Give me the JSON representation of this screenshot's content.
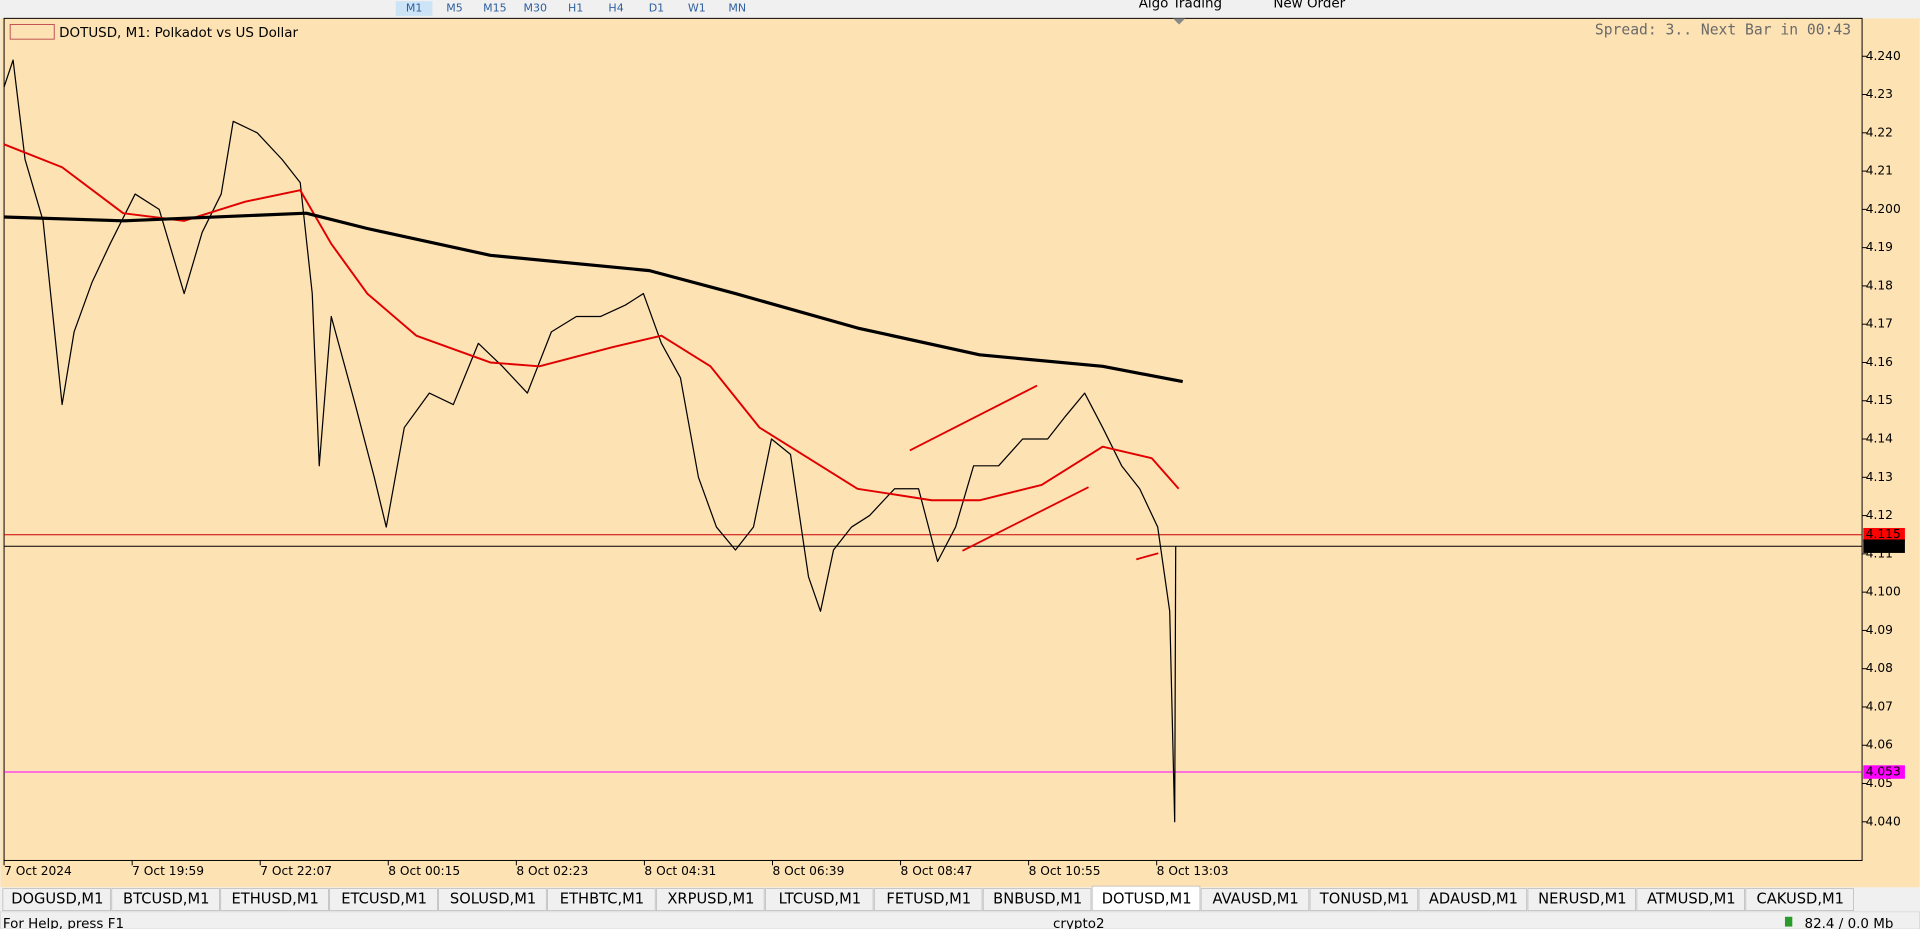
{
  "toolbar": {
    "timeframes": [
      "M1",
      "M5",
      "M15",
      "M30",
      "H1",
      "H4",
      "D1",
      "W1",
      "MN"
    ],
    "buttons": [
      "Algo Trading",
      "New Order"
    ]
  },
  "chart_data": {
    "type": "line",
    "title": "DOTUSD, M1:  Polkadot vs US Dollar",
    "info": "Spread: 3.. Next Bar in 00:43",
    "xlim": [
      0,
      1857
    ],
    "ylim": [
      4.0299,
      4.2499
    ],
    "xticks": [
      {
        "value": 0,
        "label": "7 Oct 2024"
      },
      {
        "value": 128,
        "label": "7 Oct 19:59"
      },
      {
        "value": 256,
        "label": "7 Oct 22:07"
      },
      {
        "value": 384,
        "label": "8 Oct 00:15"
      },
      {
        "value": 512,
        "label": "8 Oct 02:23"
      },
      {
        "value": 640,
        "label": "8 Oct 04:31"
      },
      {
        "value": 768,
        "label": "8 Oct 06:39"
      },
      {
        "value": 896,
        "label": "8 Oct 08:47"
      },
      {
        "value": 1024,
        "label": "8 Oct 10:55"
      },
      {
        "value": 1152,
        "label": "8 Oct 13:03"
      }
    ],
    "yticks": [
      {
        "value": 4.04,
        "label": "4.040"
      },
      4.05,
      4.06,
      4.07,
      4.08,
      4.09,
      {
        "value": 4.1,
        "label": "4.100"
      },
      4.11,
      4.12,
      4.13,
      4.14,
      4.15,
      4.16,
      4.17,
      4.18,
      4.19,
      {
        "value": 4.2,
        "label": "4.200"
      },
      4.21,
      4.22,
      4.23,
      {
        "value": 4.24,
        "label": "4.240"
      }
    ],
    "series": [
      {
        "color": "#000000",
        "width": 1,
        "x": [
          0,
          9,
          21,
          39,
          58,
          70,
          88,
          106,
          131,
          155,
          180,
          198,
          217,
          229,
          253,
          278,
          296,
          308,
          315,
          327,
          351,
          370,
          382,
          400,
          425,
          449,
          474,
          498,
          523,
          547,
          572,
          596,
          621,
          639,
          657,
          676,
          694,
          712,
          731,
          749,
          767,
          786,
          804,
          816,
          829,
          847,
          865,
          890,
          914,
          933,
          951,
          969,
          994,
          1018,
          1043,
          1061,
          1080,
          1098,
          1117,
          1135,
          1153,
          1165,
          1170,
          1171
        ],
        "values": [
          4.232,
          4.239,
          4.213,
          4.197,
          4.149,
          4.168,
          4.181,
          4.191,
          4.204,
          4.2,
          4.178,
          4.194,
          4.204,
          4.223,
          4.22,
          4.213,
          4.207,
          4.178,
          4.133,
          4.172,
          4.149,
          4.13,
          4.117,
          4.143,
          4.152,
          4.149,
          4.165,
          4.159,
          4.152,
          4.168,
          4.172,
          4.172,
          4.175,
          4.178,
          4.165,
          4.156,
          4.13,
          4.117,
          4.111,
          4.117,
          4.14,
          4.136,
          4.104,
          4.095,
          4.111,
          4.117,
          4.12,
          4.127,
          4.127,
          4.108,
          4.117,
          4.133,
          4.133,
          4.14,
          4.14,
          4.146,
          4.152,
          4.143,
          4.133,
          4.127,
          4.117,
          4.095,
          4.04,
          4.112
        ]
      },
      {
        "color": "#e00000",
        "width": 1.6,
        "x": [
          0,
          58,
          119,
          180,
          241,
          296,
          327,
          363,
          412,
          486,
          535,
          608,
          657,
          706,
          755,
          804,
          853,
          927,
          975,
          1037,
          1098,
          1147,
          1174
        ],
        "values": [
          4.217,
          4.211,
          4.199,
          4.197,
          4.202,
          4.205,
          4.191,
          4.178,
          4.167,
          4.16,
          4.159,
          4.164,
          4.167,
          4.159,
          4.143,
          4.135,
          4.127,
          4.124,
          4.124,
          4.128,
          4.138,
          4.135,
          4.127
        ]
      },
      {
        "color": "#000000",
        "width": 2.6,
        "x": [
          0,
          119,
          302,
          363,
          486,
          645,
          731,
          853,
          975,
          1098,
          1178
        ],
        "values": [
          4.198,
          4.197,
          4.199,
          4.195,
          4.188,
          4.184,
          4.178,
          4.169,
          4.162,
          4.159,
          4.155
        ]
      }
    ],
    "price_lines": [
      {
        "value": 4.115,
        "color": "#cc0000",
        "label_color": "#ff0000"
      },
      {
        "value": 4.112,
        "color": "#000000",
        "label_color": "#000000"
      },
      {
        "value": 4.053,
        "color": "#ff00ff",
        "label_color": "#ff00ff"
      }
    ]
  },
  "tabs": [
    "DOGUSD,M1",
    "BTCUSD,M1",
    "ETHUSD,M1",
    "ETCUSD,M1",
    "SOLUSD,M1",
    "ETHBTC,M1",
    "XRPUSD,M1",
    "LTCUSD,M1",
    "FETUSD,M1",
    "BNBUSD,M1",
    "DOTUSD,M1",
    "AVAUSD,M1",
    "TONUSD,M1",
    "ADAUSD,M1",
    "NERUSD,M1",
    "ATMUSD,M1",
    "CAKUSD,M1"
  ],
  "active_tab": 10,
  "status": {
    "help": "For Help, press F1",
    "profile": "crypto2",
    "memory": "82.4 / 0.0 Mb"
  }
}
